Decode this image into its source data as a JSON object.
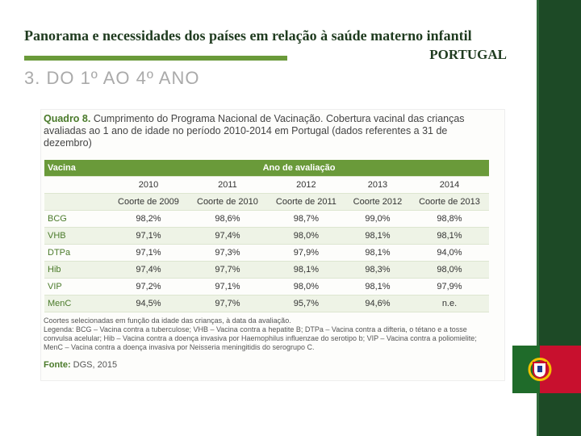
{
  "header": {
    "title": "Panorama e necessidades dos países em relação à saúde materno infantil",
    "subtitle": "PORTUGAL",
    "section": "3. DO 1º AO 4º ANO"
  },
  "figure": {
    "caption_label": "Quadro 8.",
    "caption_text": "Cumprimento do Programa Nacional de Vacinação. Cobertura vacinal das crianças avaliadas ao 1 ano de idade no período 2010-2014 em Portugal (dados referentes a 31 de dezembro)",
    "table": {
      "header": [
        "Vacina",
        "Ano de avaliação"
      ],
      "years": [
        "2010",
        "2011",
        "2012",
        "2013",
        "2014"
      ],
      "cohorts": [
        "Coorte de 2009",
        "Coorte de 2010",
        "Coorte de 2011",
        "Coorte 2012",
        "Coorte de 2013"
      ],
      "rows": [
        [
          "BCG",
          "98,2%",
          "98,6%",
          "98,7%",
          "99,0%",
          "98,8%"
        ],
        [
          "VHB",
          "97,1%",
          "97,4%",
          "98,0%",
          "98,1%",
          "98,1%"
        ],
        [
          "DTPa",
          "97,1%",
          "97,3%",
          "97,9%",
          "98,1%",
          "94,0%"
        ],
        [
          "Hib",
          "97,4%",
          "97,7%",
          "98,1%",
          "98,3%",
          "98,0%"
        ],
        [
          "VIP",
          "97,2%",
          "97,1%",
          "98,0%",
          "98,1%",
          "97,9%"
        ],
        [
          "MenC",
          "94,5%",
          "97,7%",
          "95,7%",
          "94,6%",
          "n.e."
        ]
      ]
    },
    "notes": [
      "Coortes selecionadas em função da idade das crianças, à data da avaliação.",
      "Legenda: BCG – Vacina contra a tuberculose; VHB – Vacina contra a hepatite B; DTPa – Vacina contra a difteria, o tétano e a tosse convulsa acelular; Hib – Vacina contra a doença invasiva por Haemophilus influenzae do serotipo b; VIP – Vacina contra a poliomielite; MenC – Vacina contra a doença invasiva por Neisseria meningitidis do serogrupo C."
    ],
    "source_label": "Fonte:",
    "source": "DGS, 2015"
  }
}
